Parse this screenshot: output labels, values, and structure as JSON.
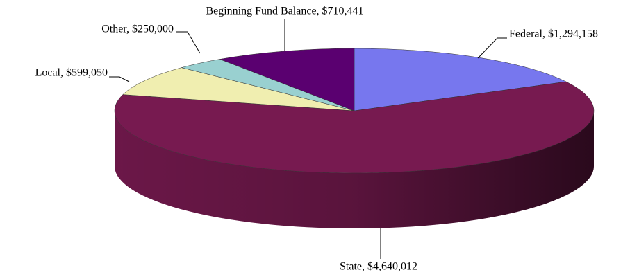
{
  "chart_data": {
    "type": "pie3d",
    "values": [
      1294158,
      4640012,
      599050,
      250000,
      710441
    ],
    "value_labels": [
      "Federal, $1,294,158",
      "State, $4,640,012",
      "Local, $599,050",
      "Other, $250,000",
      "Beginning Fund Balance, $710,441"
    ],
    "colors": [
      "#7777ee",
      "#771a50",
      "#f0eeb0",
      "#99d0d0",
      "#5a0070"
    ]
  }
}
